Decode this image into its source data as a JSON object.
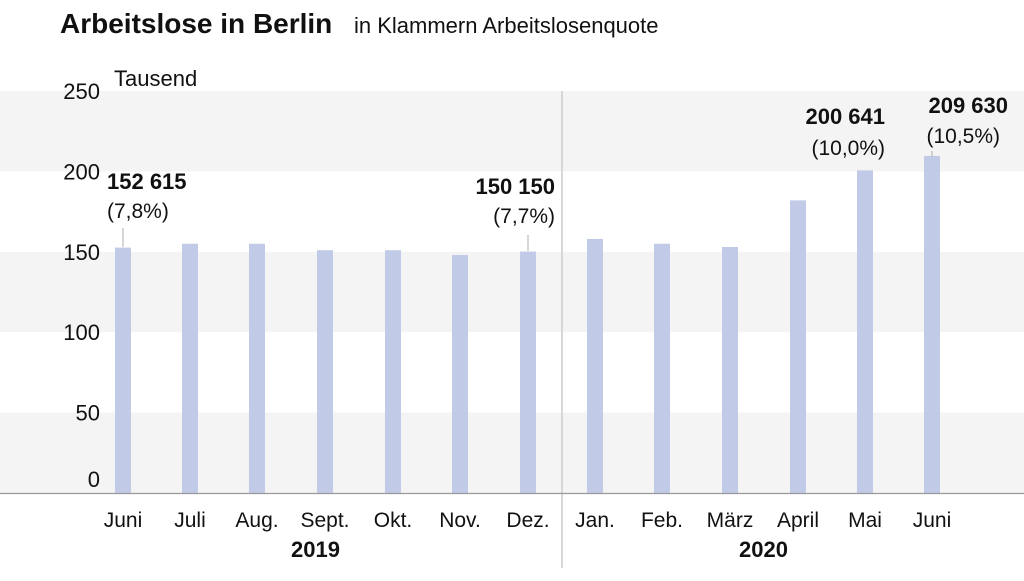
{
  "chart_data": {
    "type": "bar",
    "title": "Arbeitslose in Berlin",
    "subtitle": "in Klammern Arbeitslosenquote",
    "unit": "Tausend",
    "ylim": [
      0,
      250
    ],
    "yticks": [
      "250",
      "200",
      "150",
      "100",
      "50",
      "0"
    ],
    "grid": "alternating horizontal bands",
    "color": "#c1cbe8",
    "groups": [
      {
        "label": "2019",
        "categories": [
          "Juni",
          "Juli",
          "Aug.",
          "Sept.",
          "Okt.",
          "Nov.",
          "Dez."
        ]
      },
      {
        "label": "2020",
        "categories": [
          "Jan.",
          "Feb.",
          "März",
          "April",
          "Mai",
          "Juni"
        ]
      }
    ],
    "values": [
      152.615,
      155,
      155,
      151,
      151,
      148,
      150.15,
      158,
      155,
      153,
      182,
      200.641,
      209.63
    ],
    "annotations": [
      {
        "index": 0,
        "value_label": "152 615",
        "rate_label": "(7,8%)"
      },
      {
        "index": 6,
        "value_label": "150 150",
        "rate_label": "(7,7%)"
      },
      {
        "index": 11,
        "value_label": "200 641",
        "rate_label": "(10,0%)"
      },
      {
        "index": 12,
        "value_label": "209 630",
        "rate_label": "(10,5%)"
      }
    ]
  }
}
